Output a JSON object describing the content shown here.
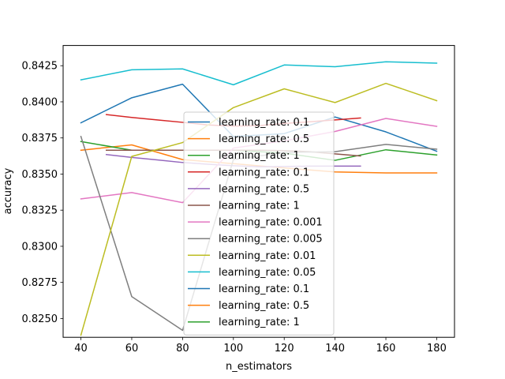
{
  "chart_data": {
    "type": "line",
    "title": "",
    "xlabel": "n_estimators",
    "ylabel": "accuracy",
    "xlim": [
      33,
      187
    ],
    "ylim": [
      0.8237,
      0.8439
    ],
    "xticks": [
      40,
      60,
      80,
      100,
      120,
      140,
      160,
      180
    ],
    "yticks": [
      0.825,
      0.8275,
      0.83,
      0.8325,
      0.835,
      0.8375,
      0.84,
      0.8425
    ],
    "ytick_labels": [
      "0.8250",
      "0.8275",
      "0.8300",
      "0.8325",
      "0.8350",
      "0.8375",
      "0.8400",
      "0.8425"
    ],
    "grid": false,
    "legend_position": "center",
    "series": [
      {
        "name": "learning_rate: 0.1",
        "color": "#1f77b4",
        "x": [
          40,
          60,
          80,
          100,
          120,
          140,
          160,
          180
        ],
        "y": [
          0.83855,
          0.84028,
          0.84122,
          0.8376,
          0.8378,
          0.83895,
          0.83792,
          0.83658
        ]
      },
      {
        "name": "learning_rate: 0.5",
        "color": "#ff7f0e",
        "x": [
          40,
          60,
          80,
          100,
          120,
          140,
          160,
          180
        ],
        "y": [
          0.83665,
          0.83702,
          0.836,
          0.83572,
          0.83542,
          0.83515,
          0.83508,
          0.83508
        ]
      },
      {
        "name": "learning_rate: 1",
        "color": "#2ca02c",
        "x": [
          40,
          60,
          80,
          100,
          120,
          140,
          160,
          180
        ],
        "y": [
          0.83725,
          0.83665,
          0.83665,
          0.83665,
          0.83645,
          0.83595,
          0.83668,
          0.83632
        ]
      },
      {
        "name": "learning_rate: 0.1",
        "color": "#d62728",
        "x": [
          50,
          60,
          70,
          80,
          90,
          100,
          110,
          120,
          130,
          140,
          150
        ],
        "y": [
          0.83912,
          0.83892,
          0.83875,
          0.83858,
          0.8384,
          0.83832,
          0.83835,
          0.8385,
          0.83862,
          0.83875,
          0.83888
        ]
      },
      {
        "name": "learning_rate: 0.5",
        "color": "#9467bd",
        "x": [
          50,
          60,
          70,
          80,
          90,
          100,
          110,
          120,
          130,
          140,
          150
        ],
        "y": [
          0.83635,
          0.83615,
          0.83598,
          0.8358,
          0.83568,
          0.83558,
          0.8355,
          0.83552,
          0.83555,
          0.83555,
          0.83555
        ]
      },
      {
        "name": "learning_rate: 1",
        "color": "#8c564b",
        "x": [
          50,
          60,
          70,
          80,
          90,
          100,
          110,
          120,
          130,
          140,
          150
        ],
        "y": [
          0.83665,
          0.83665,
          0.83665,
          0.83665,
          0.83665,
          0.83665,
          0.83665,
          0.83662,
          0.83655,
          0.8364,
          0.83625
        ]
      },
      {
        "name": "learning_rate: 0.001",
        "color": "#e377c2",
        "x": [
          40,
          60,
          80,
          100,
          120,
          140,
          160,
          180
        ],
        "y": [
          0.83328,
          0.83372,
          0.83302,
          0.8368,
          0.8373,
          0.83795,
          0.83885,
          0.8383
        ]
      },
      {
        "name": "learning_rate: 0.005",
        "color": "#7f7f7f",
        "x": [
          40,
          60,
          80,
          100,
          120,
          140,
          160,
          180
        ],
        "y": [
          0.8376,
          0.82652,
          0.82418,
          0.836,
          0.8365,
          0.83655,
          0.83705,
          0.83672
        ]
      },
      {
        "name": "learning_rate: 0.01",
        "color": "#bcbd22",
        "x": [
          40,
          60,
          80,
          100,
          120,
          140,
          160,
          180
        ],
        "y": [
          0.82385,
          0.83622,
          0.83718,
          0.8396,
          0.8409,
          0.83995,
          0.84128,
          0.84008
        ]
      },
      {
        "name": "learning_rate: 0.05",
        "color": "#17becf",
        "x": [
          40,
          60,
          80,
          100,
          120,
          140,
          160,
          180
        ],
        "y": [
          0.84152,
          0.84222,
          0.84228,
          0.84118,
          0.84255,
          0.84243,
          0.84277,
          0.84268
        ]
      },
      {
        "name": "learning_rate: 0.1",
        "color": "#1f77b4",
        "x": [],
        "y": []
      },
      {
        "name": "learning_rate: 0.5",
        "color": "#ff7f0e",
        "x": [],
        "y": []
      },
      {
        "name": "learning_rate: 1",
        "color": "#2ca02c",
        "x": [],
        "y": []
      }
    ]
  }
}
